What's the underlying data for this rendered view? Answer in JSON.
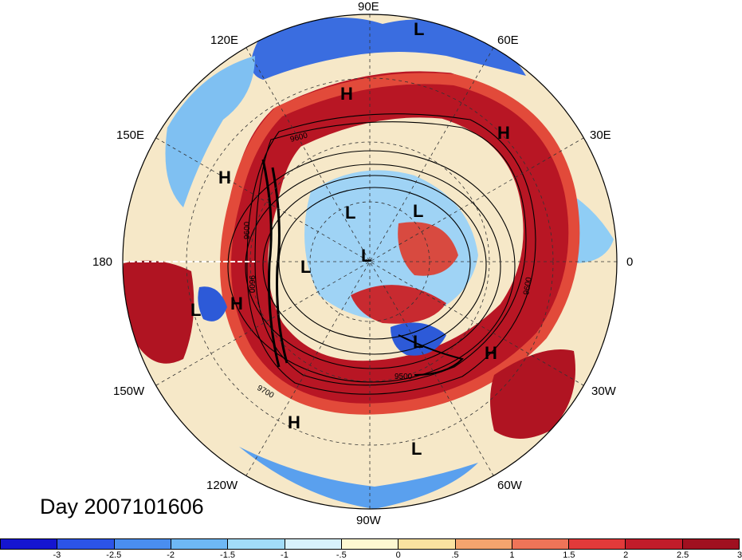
{
  "title": "Day 2007101606",
  "longitude_labels": [
    {
      "id": "90e",
      "text": "90E"
    },
    {
      "id": "60e",
      "text": "60E"
    },
    {
      "id": "30e",
      "text": "30E"
    },
    {
      "id": "0",
      "text": "0"
    },
    {
      "id": "30w",
      "text": "30W"
    },
    {
      "id": "60w",
      "text": "60W"
    },
    {
      "id": "90w",
      "text": "90W"
    },
    {
      "id": "120w",
      "text": "120W"
    },
    {
      "id": "150w",
      "text": "150W"
    },
    {
      "id": "180",
      "text": "180"
    },
    {
      "id": "150e",
      "text": "150E"
    },
    {
      "id": "120e",
      "text": "120E"
    }
  ],
  "pressure_centers": [
    {
      "text": "L"
    },
    {
      "text": "H"
    },
    {
      "text": "H"
    },
    {
      "text": "H"
    },
    {
      "text": "L"
    },
    {
      "text": "L"
    },
    {
      "text": "L"
    },
    {
      "text": "L"
    },
    {
      "text": "L"
    },
    {
      "text": "H"
    },
    {
      "text": "L"
    },
    {
      "text": "H"
    },
    {
      "text": "H"
    },
    {
      "text": "L"
    }
  ],
  "contour_labels": [
    "9600",
    "9600",
    "9600",
    "9600",
    "9700",
    "9500"
  ],
  "colorbar": {
    "colors": [
      "#1515d0",
      "#2c54e8",
      "#4a8ef0",
      "#6eb8f5",
      "#a2dcf8",
      "#d8f2fc",
      "#fdf8d2",
      "#fae2a0",
      "#f4a46e",
      "#ef7458",
      "#e23a3a",
      "#c21c2a",
      "#a01020"
    ],
    "ticks": [
      "-3",
      "-2.5",
      "-2",
      "-1.5",
      "-1",
      "-.5",
      "0",
      ".5",
      "1",
      "1.5",
      "2",
      "2.5",
      "3"
    ]
  }
}
